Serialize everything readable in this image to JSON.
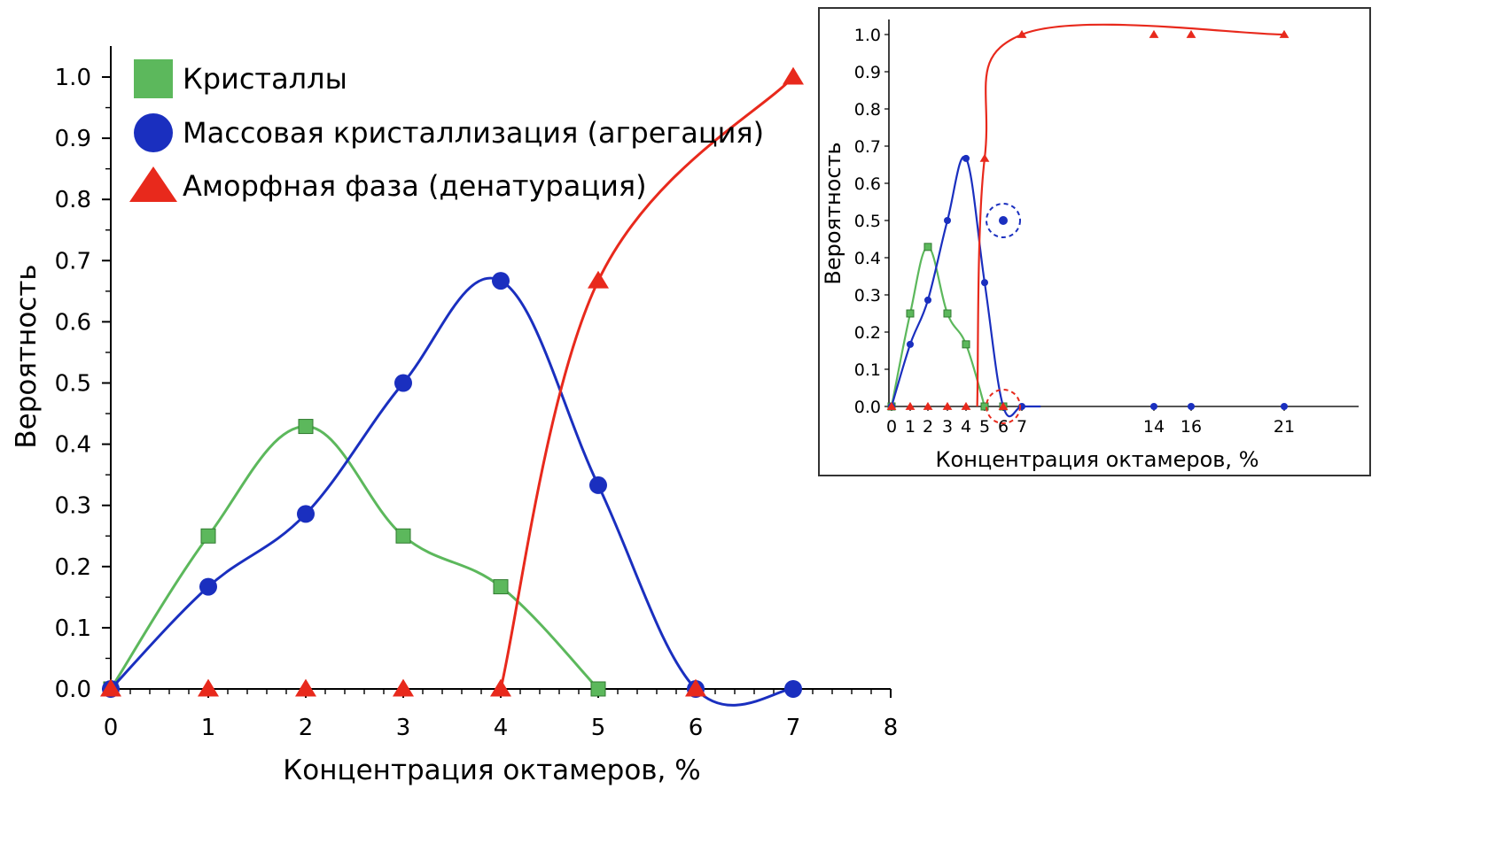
{
  "chart_data": [
    {
      "type": "line",
      "title": "",
      "xlabel": "Концентрация октамеров, %",
      "ylabel": "Вероятность",
      "xlim": [
        0,
        8
      ],
      "ylim": [
        0,
        1.0
      ],
      "x_ticks": [
        "0",
        "1",
        "2",
        "3",
        "4",
        "5",
        "6",
        "7",
        "8"
      ],
      "y_ticks": [
        "0.0",
        "0.1",
        "0.2",
        "0.3",
        "0.4",
        "0.5",
        "0.6",
        "0.7",
        "0.8",
        "0.9",
        "1.0"
      ],
      "grid": false,
      "legend_position": "top-left",
      "series": [
        {
          "name": "Кристаллы",
          "color": "#5cb85c",
          "marker": "square",
          "x": [
            0,
            1,
            2,
            3,
            4,
            5
          ],
          "y": [
            0.0,
            0.25,
            0.429,
            0.25,
            0.167,
            0.0
          ]
        },
        {
          "name": "Массовая кристаллизация (агрегация)",
          "color": "#1a2fbf",
          "marker": "circle",
          "x": [
            0,
            1,
            2,
            3,
            4,
            5,
            6,
            7
          ],
          "y": [
            0.0,
            0.167,
            0.286,
            0.5,
            0.667,
            0.333,
            0.0,
            0.0
          ]
        },
        {
          "name": "Аморфная фаза (денатурация)",
          "color": "#e8291c",
          "marker": "triangle",
          "x": [
            0,
            1,
            2,
            3,
            4,
            5,
            6,
            7
          ],
          "y": [
            0.0,
            0.0,
            0.0,
            0.0,
            0.0,
            0.667,
            0.0,
            1.0
          ]
        }
      ]
    },
    {
      "type": "line",
      "title": "",
      "xlabel": "Концентрация октамеров, %",
      "ylabel": "Вероятность",
      "xlim": [
        0,
        23
      ],
      "ylim": [
        0,
        1.0
      ],
      "x_ticks": [
        "0",
        "1",
        "2",
        "3",
        "4",
        "5",
        "6",
        "7",
        "14",
        "16",
        "21"
      ],
      "y_ticks": [
        "0.0",
        "0.1",
        "0.2",
        "0.3",
        "0.4",
        "0.5",
        "0.6",
        "0.7",
        "0.8",
        "0.9",
        "1.0"
      ],
      "grid": false,
      "series": [
        {
          "name": "",
          "color": "#5cb85c",
          "marker": "square",
          "x": [
            0,
            1,
            2,
            3,
            4,
            5,
            6
          ],
          "y": [
            0.0,
            0.25,
            0.429,
            0.25,
            0.167,
            0.0,
            0.0
          ]
        },
        {
          "name": "",
          "color": "#1a2fbf",
          "marker": "circle",
          "x": [
            0,
            1,
            2,
            3,
            4,
            5,
            7,
            14,
            16,
            21
          ],
          "y": [
            0.0,
            0.167,
            0.286,
            0.5,
            0.667,
            0.333,
            0.0,
            0.0,
            0.0,
            0.0
          ]
        },
        {
          "name": "",
          "color": "#e8291c",
          "marker": "triangle",
          "x": [
            0,
            1,
            2,
            3,
            4,
            5,
            6,
            7,
            14,
            16,
            21
          ],
          "y": [
            0.0,
            0.0,
            0.0,
            0.0,
            0.0,
            0.667,
            0.0,
            1.0,
            1.0,
            1.0,
            1.0
          ]
        }
      ],
      "outlier_points": [
        {
          "series": "blue",
          "x": 6,
          "y": 0.5,
          "circled": true
        },
        {
          "series": "red",
          "x": 6,
          "y": 0.0,
          "circled": true
        }
      ]
    }
  ]
}
